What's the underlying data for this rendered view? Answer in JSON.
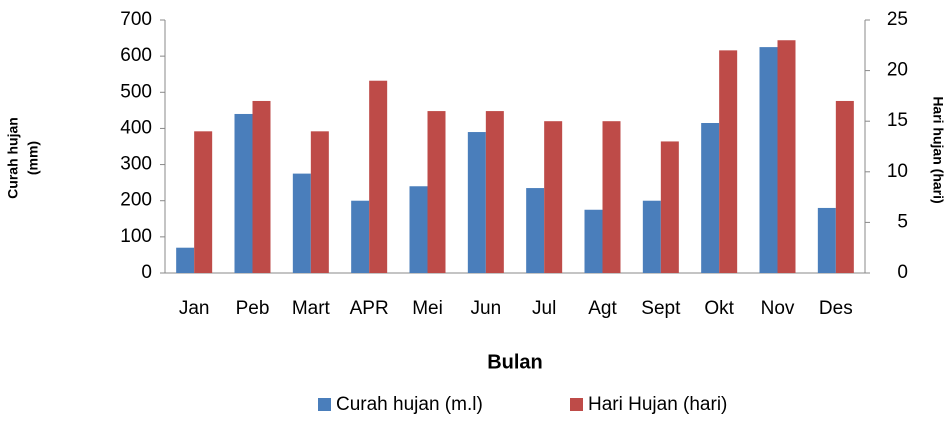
{
  "chart_data": {
    "type": "bar",
    "xlabel": "Bulan",
    "ylabel": [
      "Curah hujan",
      "(mm)"
    ],
    "y2label": "Hari hujan (hari)",
    "categories": [
      "Jan",
      "Peb",
      "Mart",
      "APR",
      "Mei",
      "Jun",
      "Jul",
      "Agt",
      "Sept",
      "Okt",
      "Nov",
      "Des"
    ],
    "series": [
      {
        "name": "Curah hujan (m.l)",
        "color": "#4a7ebb",
        "values": [
          70,
          440,
          275,
          200,
          240,
          390,
          235,
          175,
          200,
          415,
          625,
          180
        ]
      },
      {
        "name": "Hari Hujan (hari)",
        "color": "#be4b48",
        "axis": "y2",
        "values": [
          14,
          17,
          14,
          19,
          16,
          16,
          15,
          15,
          13,
          22,
          23,
          17
        ]
      }
    ],
    "ylim": [
      0,
      700
    ],
    "yticks": [
      0,
      100,
      200,
      300,
      400,
      500,
      600,
      700
    ],
    "y2lim": [
      0,
      25
    ],
    "y2ticks": [
      0,
      5,
      10,
      15,
      20,
      25
    ],
    "grid": false,
    "legend": "bottom"
  }
}
